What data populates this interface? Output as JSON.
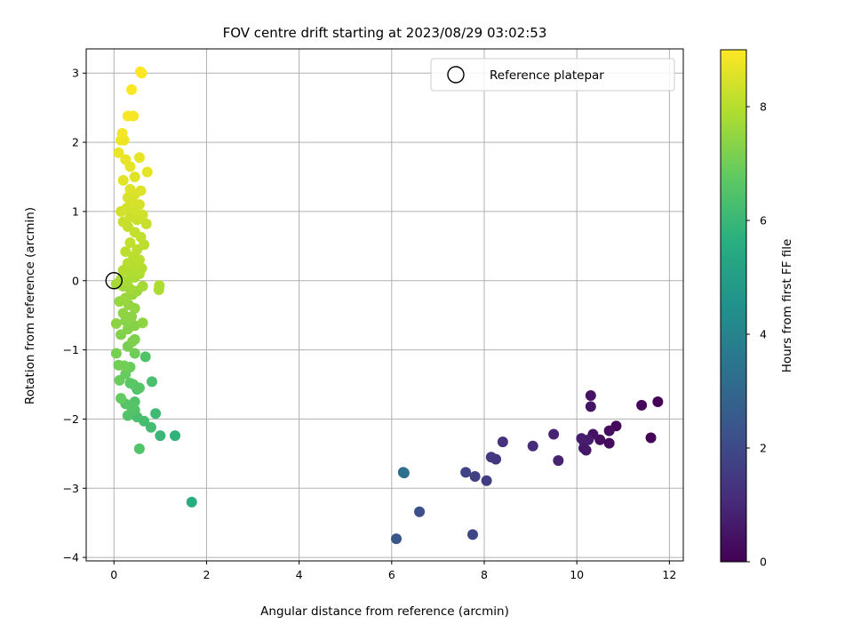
{
  "chart_data": {
    "type": "scatter",
    "title": "FOV centre drift starting at 2023/08/29 03:02:53",
    "xlabel": "Angular distance from reference (arcmin)",
    "ylabel": "Rotation from reference (arcmin)",
    "xlim": [
      -0.6,
      12.3
    ],
    "ylim": [
      -4.05,
      3.35
    ],
    "xticks": [
      0,
      2,
      4,
      6,
      8,
      10,
      12
    ],
    "yticks": [
      -4,
      -3,
      -2,
      -1,
      0,
      1,
      2,
      3
    ],
    "grid": true,
    "legend": {
      "position": "top-right",
      "label": "Reference platepar"
    },
    "reference_point": {
      "x": 0,
      "y": 0
    },
    "colorbar": {
      "label": "Hours from first FF file",
      "colormap": "viridis",
      "range": [
        0,
        9
      ],
      "ticks": [
        0,
        2,
        4,
        6,
        8
      ]
    },
    "points": [
      {
        "x": 11.75,
        "y": -1.75,
        "t": 0.05
      },
      {
        "x": 11.6,
        "y": -2.27,
        "t": 0.1
      },
      {
        "x": 11.4,
        "y": -1.8,
        "t": 0.15
      },
      {
        "x": 10.85,
        "y": -2.1,
        "t": 0.2
      },
      {
        "x": 10.7,
        "y": -2.35,
        "t": 0.25
      },
      {
        "x": 10.7,
        "y": -2.17,
        "t": 0.3
      },
      {
        "x": 10.5,
        "y": -2.3,
        "t": 0.35
      },
      {
        "x": 10.35,
        "y": -2.22,
        "t": 0.4
      },
      {
        "x": 10.3,
        "y": -1.66,
        "t": 0.45
      },
      {
        "x": 10.3,
        "y": -1.82,
        "t": 0.5
      },
      {
        "x": 10.2,
        "y": -2.45,
        "t": 0.55
      },
      {
        "x": 10.15,
        "y": -2.42,
        "t": 0.6
      },
      {
        "x": 10.15,
        "y": -2.32,
        "t": 0.65
      },
      {
        "x": 10.25,
        "y": -2.3,
        "t": 0.7
      },
      {
        "x": 10.1,
        "y": -2.28,
        "t": 0.75
      },
      {
        "x": 9.6,
        "y": -2.6,
        "t": 0.85
      },
      {
        "x": 9.5,
        "y": -2.22,
        "t": 0.9
      },
      {
        "x": 9.05,
        "y": -2.39,
        "t": 1.1
      },
      {
        "x": 8.4,
        "y": -2.33,
        "t": 1.3
      },
      {
        "x": 8.25,
        "y": -2.58,
        "t": 1.4
      },
      {
        "x": 8.15,
        "y": -2.55,
        "t": 1.5
      },
      {
        "x": 8.05,
        "y": -2.89,
        "t": 1.6
      },
      {
        "x": 7.8,
        "y": -2.83,
        "t": 1.7
      },
      {
        "x": 7.6,
        "y": -2.77,
        "t": 1.8
      },
      {
        "x": 7.75,
        "y": -3.67,
        "t": 1.9
      },
      {
        "x": 6.6,
        "y": -3.34,
        "t": 2.2
      },
      {
        "x": 6.1,
        "y": -3.73,
        "t": 2.4
      },
      {
        "x": 6.25,
        "y": -2.77,
        "t": 2.7
      },
      {
        "x": 6.27,
        "y": -2.78,
        "t": 3.3
      },
      {
        "x": 1.68,
        "y": -3.2,
        "t": 5.6
      },
      {
        "x": 1.32,
        "y": -2.24,
        "t": 5.8
      },
      {
        "x": 1.0,
        "y": -2.24,
        "t": 6.0
      },
      {
        "x": 0.9,
        "y": -1.92,
        "t": 6.1
      },
      {
        "x": 0.8,
        "y": -2.12,
        "t": 6.2
      },
      {
        "x": 0.55,
        "y": -2.43,
        "t": 6.5
      },
      {
        "x": 0.5,
        "y": -1.97,
        "t": 6.3
      },
      {
        "x": 0.65,
        "y": -2.03,
        "t": 6.25
      },
      {
        "x": 0.82,
        "y": -1.46,
        "t": 6.35
      },
      {
        "x": 0.68,
        "y": -1.1,
        "t": 6.45
      },
      {
        "x": 0.5,
        "y": -1.57,
        "t": 6.4
      },
      {
        "x": 0.45,
        "y": -1.75,
        "t": 6.5
      },
      {
        "x": 0.45,
        "y": -1.87,
        "t": 6.45
      },
      {
        "x": 0.38,
        "y": -1.83,
        "t": 6.55
      },
      {
        "x": 0.3,
        "y": -1.95,
        "t": 6.5
      },
      {
        "x": 0.25,
        "y": -1.78,
        "t": 6.6
      },
      {
        "x": 0.15,
        "y": -1.7,
        "t": 6.8
      },
      {
        "x": 0.35,
        "y": -1.48,
        "t": 6.7
      },
      {
        "x": 0.42,
        "y": -1.5,
        "t": 6.65
      },
      {
        "x": 0.55,
        "y": -1.55,
        "t": 6.6
      },
      {
        "x": 0.12,
        "y": -1.44,
        "t": 6.9
      },
      {
        "x": 0.25,
        "y": -1.35,
        "t": 6.85
      },
      {
        "x": 0.35,
        "y": -1.25,
        "t": 6.9
      },
      {
        "x": 0.1,
        "y": -1.22,
        "t": 7.0
      },
      {
        "x": 0.22,
        "y": -1.23,
        "t": 7.05
      },
      {
        "x": 0.05,
        "y": -1.05,
        "t": 7.1
      },
      {
        "x": 0.45,
        "y": -1.05,
        "t": 7.0
      },
      {
        "x": 0.3,
        "y": -0.95,
        "t": 7.1
      },
      {
        "x": 0.45,
        "y": -0.85,
        "t": 7.15
      },
      {
        "x": 0.4,
        "y": -0.88,
        "t": 7.2
      },
      {
        "x": 0.15,
        "y": -0.78,
        "t": 7.25
      },
      {
        "x": 0.3,
        "y": -0.7,
        "t": 7.3
      },
      {
        "x": 0.45,
        "y": -0.65,
        "t": 7.3
      },
      {
        "x": 0.05,
        "y": -0.62,
        "t": 7.4
      },
      {
        "x": 0.25,
        "y": -0.58,
        "t": 7.35
      },
      {
        "x": 0.62,
        "y": -0.61,
        "t": 7.45
      },
      {
        "x": 0.38,
        "y": -0.52,
        "t": 7.4
      },
      {
        "x": 0.2,
        "y": -0.47,
        "t": 7.45
      },
      {
        "x": 0.45,
        "y": -0.4,
        "t": 7.5
      },
      {
        "x": 0.32,
        "y": -0.35,
        "t": 7.5
      },
      {
        "x": 0.12,
        "y": -0.3,
        "t": 7.55
      },
      {
        "x": 0.25,
        "y": -0.25,
        "t": 7.6
      },
      {
        "x": 0.4,
        "y": -0.2,
        "t": 7.6
      },
      {
        "x": 0.5,
        "y": -0.15,
        "t": 7.65
      },
      {
        "x": 0.35,
        "y": -0.12,
        "t": 7.7
      },
      {
        "x": 0.2,
        "y": -0.08,
        "t": 7.7
      },
      {
        "x": 0.05,
        "y": -0.05,
        "t": 7.75
      },
      {
        "x": 0.62,
        "y": -0.08,
        "t": 7.75
      },
      {
        "x": 0.3,
        "y": 0.0,
        "t": 7.8
      },
      {
        "x": 0.15,
        "y": 0.02,
        "t": 7.8
      },
      {
        "x": 0.45,
        "y": 0.05,
        "t": 7.85
      },
      {
        "x": 0.98,
        "y": -0.07,
        "t": 7.9
      },
      {
        "x": 0.97,
        "y": -0.13,
        "t": 7.85
      },
      {
        "x": 0.55,
        "y": 0.1,
        "t": 7.9
      },
      {
        "x": 0.35,
        "y": 0.12,
        "t": 7.9
      },
      {
        "x": 0.2,
        "y": 0.15,
        "t": 7.95
      },
      {
        "x": 0.6,
        "y": 0.18,
        "t": 7.95
      },
      {
        "x": 0.45,
        "y": 0.22,
        "t": 8.0
      },
      {
        "x": 0.3,
        "y": 0.25,
        "t": 8.0
      },
      {
        "x": 0.55,
        "y": 0.3,
        "t": 8.05
      },
      {
        "x": 0.42,
        "y": 0.35,
        "t": 8.05
      },
      {
        "x": 0.25,
        "y": 0.42,
        "t": 8.1
      },
      {
        "x": 0.5,
        "y": 0.45,
        "t": 8.1
      },
      {
        "x": 0.65,
        "y": 0.52,
        "t": 8.1
      },
      {
        "x": 0.35,
        "y": 0.55,
        "t": 8.15
      },
      {
        "x": 0.58,
        "y": 0.63,
        "t": 8.15
      },
      {
        "x": 0.45,
        "y": 0.7,
        "t": 8.2
      },
      {
        "x": 0.3,
        "y": 0.78,
        "t": 8.2
      },
      {
        "x": 0.7,
        "y": 0.82,
        "t": 8.25
      },
      {
        "x": 0.2,
        "y": 0.85,
        "t": 8.25
      },
      {
        "x": 0.5,
        "y": 0.88,
        "t": 8.3
      },
      {
        "x": 0.35,
        "y": 0.92,
        "t": 8.3
      },
      {
        "x": 0.62,
        "y": 0.95,
        "t": 8.35
      },
      {
        "x": 0.45,
        "y": 1.0,
        "t": 8.35
      },
      {
        "x": 0.15,
        "y": 1.0,
        "t": 8.4
      },
      {
        "x": 0.28,
        "y": 1.05,
        "t": 8.4
      },
      {
        "x": 0.55,
        "y": 1.1,
        "t": 8.45
      },
      {
        "x": 0.4,
        "y": 1.15,
        "t": 8.45
      },
      {
        "x": 0.3,
        "y": 1.2,
        "t": 8.5
      },
      {
        "x": 0.45,
        "y": 1.25,
        "t": 8.5
      },
      {
        "x": 0.58,
        "y": 1.3,
        "t": 8.55
      },
      {
        "x": 0.35,
        "y": 1.32,
        "t": 8.55
      },
      {
        "x": 0.2,
        "y": 1.45,
        "t": 8.6
      },
      {
        "x": 0.45,
        "y": 1.5,
        "t": 8.6
      },
      {
        "x": 0.72,
        "y": 1.57,
        "t": 8.65
      },
      {
        "x": 0.35,
        "y": 1.65,
        "t": 8.65
      },
      {
        "x": 0.25,
        "y": 1.75,
        "t": 8.7
      },
      {
        "x": 0.55,
        "y": 1.78,
        "t": 8.7
      },
      {
        "x": 0.1,
        "y": 1.85,
        "t": 8.75
      },
      {
        "x": 0.15,
        "y": 2.03,
        "t": 8.8
      },
      {
        "x": 0.22,
        "y": 2.03,
        "t": 8.8
      },
      {
        "x": 0.18,
        "y": 2.13,
        "t": 8.85
      },
      {
        "x": 0.3,
        "y": 2.38,
        "t": 8.9
      },
      {
        "x": 0.42,
        "y": 2.38,
        "t": 8.9
      },
      {
        "x": 0.38,
        "y": 2.76,
        "t": 8.95
      },
      {
        "x": 0.57,
        "y": 3.02,
        "t": 9.0
      },
      {
        "x": 0.6,
        "y": 3.0,
        "t": 9.0
      }
    ]
  }
}
